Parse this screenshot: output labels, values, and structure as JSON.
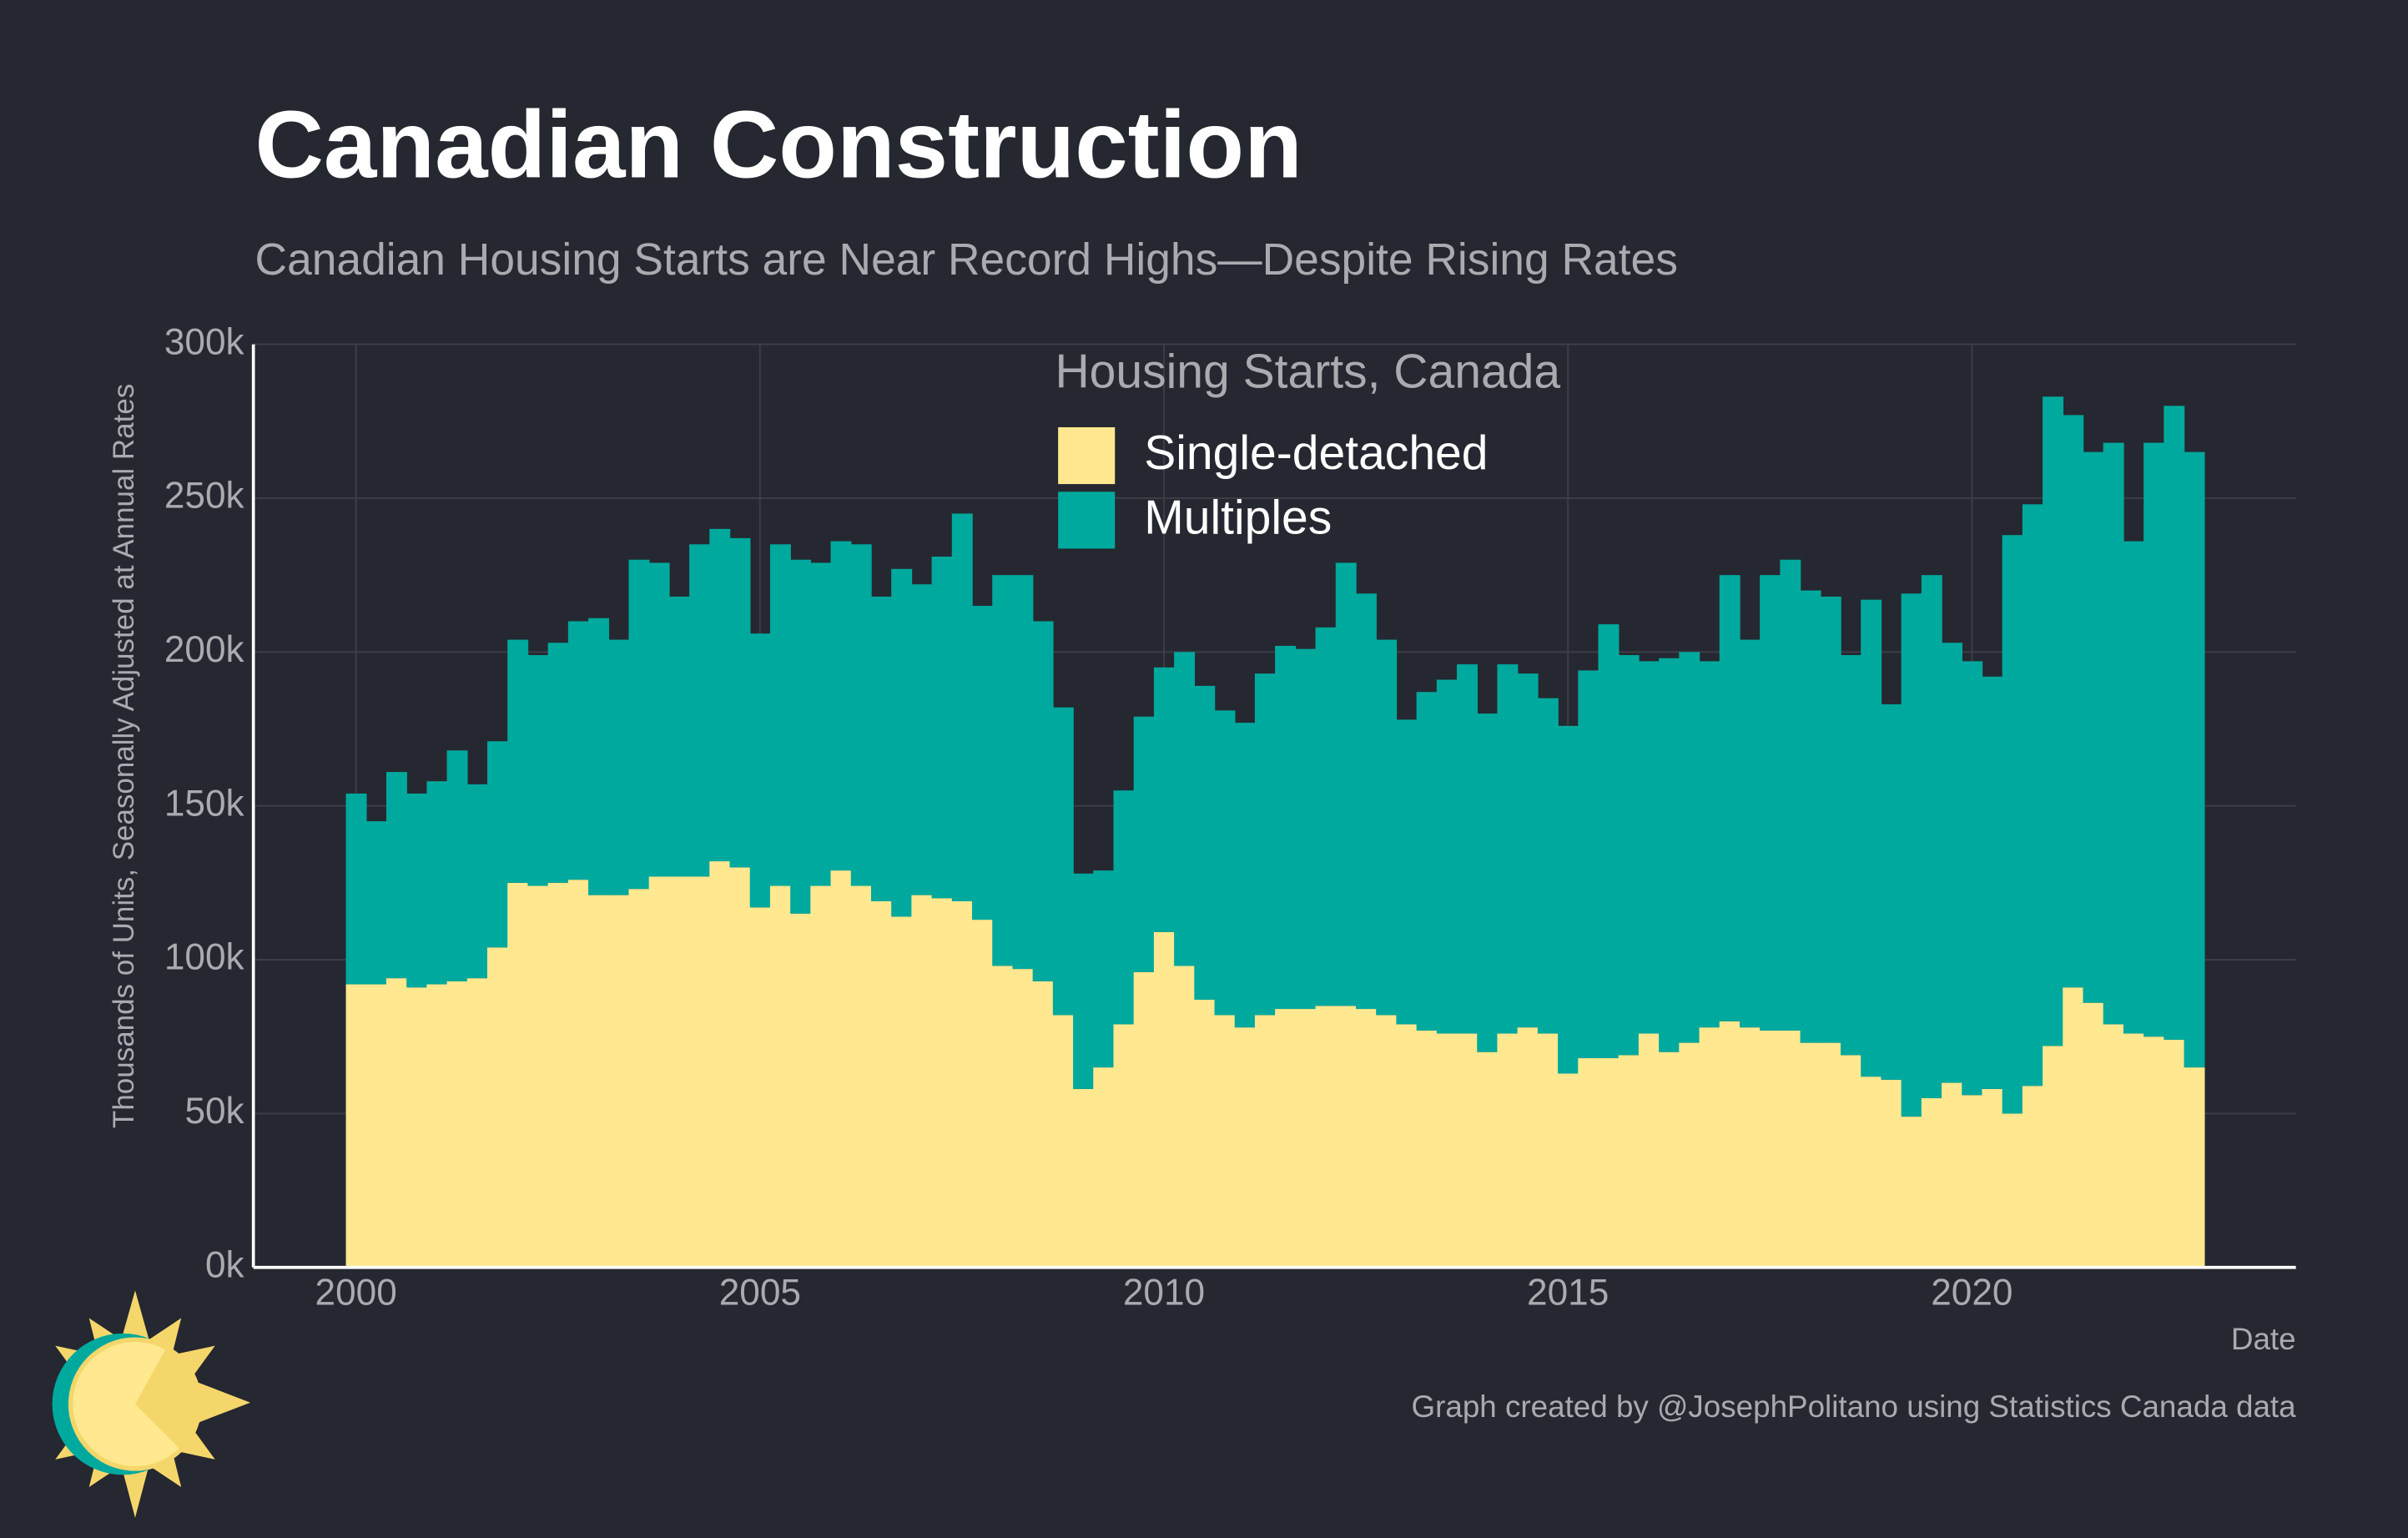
{
  "chart_data": {
    "type": "stacked_bar",
    "title": "Canadian Construction",
    "subtitle": "Canadian Housing Starts are Near Record Highs—Despite Rising Rates",
    "ylabel": "Thousands of Units, Seasonally Adjusted at Annual Rates",
    "xlabel": "Date",
    "legend_title": "Housing Starts, Canada",
    "caption": "Graph created by @JosephPolitano using Statistics Canada data",
    "x": [
      2000,
      2000.25,
      2000.5,
      2000.75,
      2001,
      2001.25,
      2001.5,
      2001.75,
      2002,
      2002.25,
      2002.5,
      2002.75,
      2003,
      2003.25,
      2003.5,
      2003.75,
      2004,
      2004.25,
      2004.5,
      2004.75,
      2005,
      2005.25,
      2005.5,
      2005.75,
      2006,
      2006.25,
      2006.5,
      2006.75,
      2007,
      2007.25,
      2007.5,
      2007.75,
      2008,
      2008.25,
      2008.5,
      2008.75,
      2009,
      2009.25,
      2009.5,
      2009.75,
      2010,
      2010.25,
      2010.5,
      2010.75,
      2011,
      2011.25,
      2011.5,
      2011.75,
      2012,
      2012.25,
      2012.5,
      2012.75,
      2013,
      2013.25,
      2013.5,
      2013.75,
      2014,
      2014.25,
      2014.5,
      2014.75,
      2015,
      2015.25,
      2015.5,
      2015.75,
      2016,
      2016.25,
      2016.5,
      2016.75,
      2017,
      2017.25,
      2017.5,
      2017.75,
      2018,
      2018.25,
      2018.5,
      2018.75,
      2019,
      2019.25,
      2019.5,
      2019.75,
      2020,
      2020.25,
      2020.5,
      2020.75,
      2021,
      2021.25,
      2021.5,
      2021.75,
      2022,
      2022.25,
      2022.5,
      2022.75
    ],
    "series": [
      {
        "name": "Single-detached",
        "color": "#ffe88f",
        "values": [
          92,
          92,
          94,
          91,
          92,
          93,
          94,
          104,
          125,
          124,
          125,
          126,
          121,
          121,
          123,
          127,
          127,
          127,
          132,
          130,
          117,
          124,
          115,
          124,
          129,
          124,
          119,
          114,
          121,
          120,
          119,
          113,
          98,
          97,
          93,
          82,
          58,
          65,
          79,
          96,
          109,
          98,
          87,
          82,
          78,
          82,
          84,
          84,
          85,
          85,
          84,
          82,
          79,
          77,
          76,
          76,
          70,
          76,
          78,
          76,
          63,
          68,
          68,
          69,
          76,
          70,
          73,
          78,
          80,
          78,
          77,
          77,
          73,
          73,
          69,
          62,
          61,
          49,
          55,
          60,
          56,
          58,
          50,
          59,
          72,
          91,
          86,
          79,
          76,
          75,
          74,
          65
        ]
      },
      {
        "name": "Multiples",
        "color": "#00a99d",
        "values": [
          62,
          53,
          67,
          63,
          66,
          75,
          63,
          67,
          79,
          75,
          78,
          84,
          90,
          83,
          107,
          102,
          91,
          108,
          108,
          107,
          89,
          111,
          115,
          105,
          107,
          111,
          99,
          113,
          101,
          111,
          126,
          102,
          127,
          128,
          117,
          100,
          70,
          64,
          76,
          83,
          86,
          102,
          102,
          99,
          99,
          111,
          118,
          117,
          123,
          144,
          135,
          122,
          99,
          110,
          115,
          120,
          110,
          120,
          115,
          109,
          113,
          126,
          141,
          130,
          121,
          128,
          127,
          119,
          145,
          126,
          148,
          153,
          147,
          145,
          130,
          155,
          122,
          170,
          170,
          143,
          141,
          134,
          188,
          189,
          211,
          186,
          179,
          189,
          160,
          193,
          206,
          200
        ]
      }
    ],
    "xlim": [
      1998.73,
      2024.01
    ],
    "xticks": [
      2000,
      2005,
      2010,
      2015,
      2020
    ],
    "ylim": [
      0,
      300
    ],
    "yticks": [
      {
        "value": 0,
        "label": "0k"
      },
      {
        "value": 50,
        "label": "50k"
      },
      {
        "value": 100,
        "label": "100k"
      },
      {
        "value": 150,
        "label": "150k"
      },
      {
        "value": 200,
        "label": "200k"
      },
      {
        "value": 250,
        "label": "250k"
      },
      {
        "value": 300,
        "label": "300k"
      }
    ],
    "grid": true
  }
}
